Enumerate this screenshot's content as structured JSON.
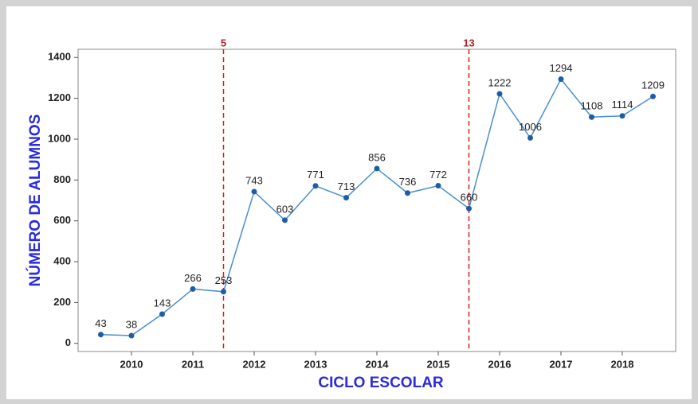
{
  "chart_data": {
    "type": "line",
    "x_label": "CICLO ESCOLAR",
    "y_label": "NÚMERO DE ALUMNOS",
    "categories": [
      null,
      "2010",
      null,
      "2011",
      null,
      "2012",
      null,
      "2013",
      null,
      "2014",
      null,
      "2015",
      null,
      "2016",
      null,
      "2017",
      null,
      "2018",
      null
    ],
    "values": [
      43,
      38,
      143,
      266,
      253,
      743,
      603,
      771,
      713,
      856,
      736,
      772,
      660,
      1222,
      1006,
      1294,
      1108,
      1114,
      1209
    ],
    "color": "#4a8fd0",
    "marker_color": "#1f5ca8",
    "reference_lines": [
      5,
      13
    ],
    "reference_color": "#d42020",
    "ylim": [
      -40,
      1440
    ],
    "yticks": [
      0,
      200,
      400,
      600,
      800,
      1000,
      1200,
      1400
    ]
  }
}
